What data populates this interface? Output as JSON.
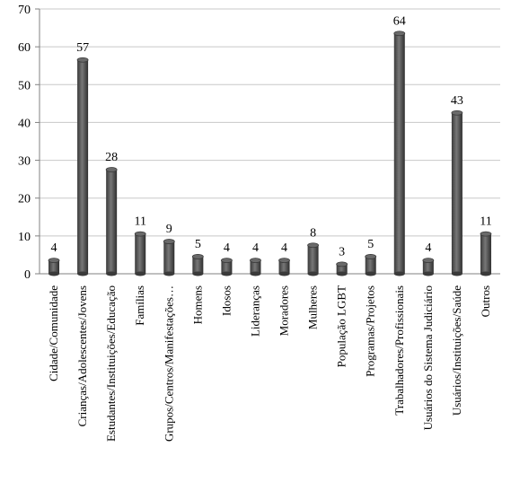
{
  "chart_data": {
    "type": "bar",
    "categories": [
      "Cidade/Comunidade",
      "Crianças/Adolescentes/Jovens",
      "Estudantes/Instituições/Educação",
      "Famílias",
      "Grupos/Centros/Manifestações…",
      "Homens",
      "Idosos",
      "Lideranças",
      "Moradores",
      "Mulheres",
      "População LGBT",
      "Programas/Projetos",
      "Trabalhadores/Profissionais",
      "Usuários do Sistema Judiciário",
      "Usuários/Instituições/Saúde",
      "Outros"
    ],
    "values": [
      4,
      57,
      28,
      11,
      9,
      5,
      4,
      4,
      4,
      8,
      3,
      5,
      64,
      4,
      43,
      11
    ],
    "ylim": [
      0,
      70
    ],
    "yticks": [
      0,
      10,
      20,
      30,
      40,
      50,
      60,
      70
    ],
    "grid": true,
    "bar_color": "#555555",
    "title": "",
    "xlabel": "",
    "ylabel": ""
  }
}
